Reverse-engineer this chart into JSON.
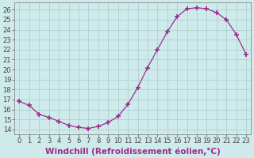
{
  "x": [
    0,
    1,
    2,
    3,
    4,
    5,
    6,
    7,
    8,
    9,
    10,
    11,
    12,
    13,
    14,
    15,
    16,
    17,
    18,
    19,
    20,
    21,
    22,
    23
  ],
  "y": [
    16.8,
    16.4,
    15.5,
    15.2,
    14.8,
    14.4,
    14.2,
    14.1,
    14.3,
    14.7,
    15.3,
    16.5,
    18.2,
    20.2,
    22.0,
    23.8,
    25.3,
    26.1,
    26.2,
    26.1,
    25.7,
    25.0,
    23.5,
    21.5
  ],
  "line_color": "#9b2d8e",
  "marker": "+",
  "marker_size": 4,
  "bg_color": "#ceeaea",
  "grid_color": "#aed0d0",
  "xlabel": "Windchill (Refroidissement éolien,°C)",
  "ylabel": "",
  "ylim": [
    13.5,
    26.7
  ],
  "xlim": [
    -0.5,
    23.5
  ],
  "yticks": [
    14,
    15,
    16,
    17,
    18,
    19,
    20,
    21,
    22,
    23,
    24,
    25,
    26
  ],
  "xticks": [
    0,
    1,
    2,
    3,
    4,
    5,
    6,
    7,
    8,
    9,
    10,
    11,
    12,
    13,
    14,
    15,
    16,
    17,
    18,
    19,
    20,
    21,
    22,
    23
  ],
  "xlabel_color": "#9b2d8e",
  "axis_color": "#444444",
  "tick_label_fontsize": 6.0,
  "xlabel_fontsize": 7.5,
  "spine_color": "#888888",
  "linewidth": 0.9,
  "markerwidth": 1.2
}
